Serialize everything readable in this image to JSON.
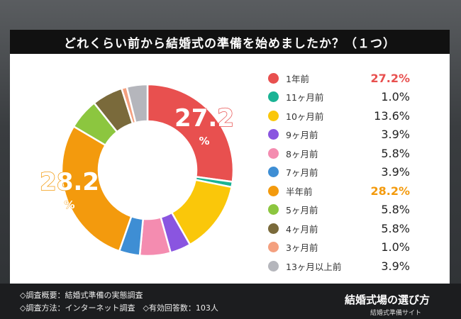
{
  "title": "どれくらい前から結婚式の準備を始めましたか？（１つ）",
  "chart_data": {
    "type": "pie",
    "title": "どれくらい前から結婚式の準備を始めましたか？（１つ）",
    "categories": [
      "1年前",
      "11ヶ月前",
      "10ヶ月前",
      "9ヶ月前",
      "8ヶ月前",
      "7ヶ月前",
      "半年前",
      "5ヶ月前",
      "4ヶ月前",
      "3ヶ月前",
      "13ヶ月以上前"
    ],
    "values": [
      27.2,
      1.0,
      13.6,
      3.9,
      5.8,
      3.9,
      28.2,
      5.8,
      5.8,
      1.0,
      3.9
    ],
    "value_labels": [
      "27.2%",
      "1.0%",
      "13.6%",
      "3.9%",
      "5.8%",
      "3.9%",
      "28.2%",
      "5.8%",
      "5.8%",
      "1.0%",
      "3.9%"
    ],
    "colors": [
      "#e8504f",
      "#1ab394",
      "#fac70a",
      "#8a55e0",
      "#f48cb0",
      "#3e8ed4",
      "#f39a0d",
      "#8cc63f",
      "#7a6a3b",
      "#f4a07f",
      "#b5b6bc"
    ],
    "donut_labels": [
      {
        "index": 0,
        "number": "27.2",
        "unit": "%"
      },
      {
        "index": 6,
        "number": "28.2",
        "unit": "%"
      }
    ]
  },
  "footer": {
    "note1": "◇調査概要：結婚式準備の実態調査",
    "note2": "◇調査方法：インターネット調査　◇有効回答数：103人",
    "brand": "結婚式場の選び方",
    "brand_sub": "結婚式準備サイト"
  }
}
